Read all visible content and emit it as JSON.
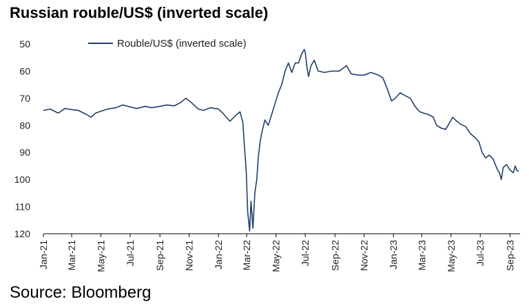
{
  "title": "Russian rouble/US$ (inverted scale)",
  "source": "Source: Bloomberg",
  "colors": {
    "series": "#1f3f66",
    "axis": "#000000"
  },
  "chart_data": {
    "type": "line",
    "title": "Russian rouble/US$ (inverted scale)",
    "xlabel": "",
    "ylabel": "",
    "x_ticks": [
      "Jan-21",
      "Mar-21",
      "May-21",
      "Jul-21",
      "Sep-21",
      "Nov-21",
      "Jan-22",
      "Mar-22",
      "May-22",
      "Jul-22",
      "Sep-22",
      "Nov-22",
      "Jan-23",
      "Mar-23",
      "May-23",
      "Jul-23",
      "Sep-23"
    ],
    "y_ticks": [
      50,
      60,
      70,
      80,
      90,
      100,
      110,
      120
    ],
    "ylim": [
      50,
      120
    ],
    "y_inverted": true,
    "grid": false,
    "legend": "top",
    "series": [
      {
        "name": "Rouble/US$ (inverted scale)",
        "points": [
          [
            "2021-01-01",
            74.5
          ],
          [
            "2021-01-15",
            74.0
          ],
          [
            "2021-02-01",
            75.5
          ],
          [
            "2021-02-15",
            73.8
          ],
          [
            "2021-03-01",
            74.2
          ],
          [
            "2021-03-15",
            74.5
          ],
          [
            "2021-04-01",
            76.0
          ],
          [
            "2021-04-10",
            77.0
          ],
          [
            "2021-04-20",
            75.5
          ],
          [
            "2021-05-01",
            74.8
          ],
          [
            "2021-05-15",
            74.0
          ],
          [
            "2021-06-01",
            73.5
          ],
          [
            "2021-06-15",
            72.5
          ],
          [
            "2021-07-01",
            73.2
          ],
          [
            "2021-07-15",
            73.8
          ],
          [
            "2021-08-01",
            73.0
          ],
          [
            "2021-08-15",
            73.5
          ],
          [
            "2021-09-01",
            73.0
          ],
          [
            "2021-09-15",
            72.5
          ],
          [
            "2021-10-01",
            72.8
          ],
          [
            "2021-10-15",
            71.5
          ],
          [
            "2021-10-25",
            70.0
          ],
          [
            "2021-11-05",
            71.5
          ],
          [
            "2021-11-20",
            74.0
          ],
          [
            "2021-12-01",
            74.5
          ],
          [
            "2021-12-15",
            73.5
          ],
          [
            "2022-01-01",
            74.0
          ],
          [
            "2022-01-10",
            75.5
          ],
          [
            "2022-01-25",
            78.5
          ],
          [
            "2022-02-05",
            76.5
          ],
          [
            "2022-02-15",
            75.0
          ],
          [
            "2022-02-21",
            79.0
          ],
          [
            "2022-02-24",
            87.0
          ],
          [
            "2022-02-28",
            97.0
          ],
          [
            "2022-03-03",
            112.0
          ],
          [
            "2022-03-07",
            119.0
          ],
          [
            "2022-03-10",
            108.0
          ],
          [
            "2022-03-14",
            118.0
          ],
          [
            "2022-03-18",
            105.0
          ],
          [
            "2022-03-22",
            100.0
          ],
          [
            "2022-03-25",
            92.0
          ],
          [
            "2022-03-29",
            86.0
          ],
          [
            "2022-04-01",
            83.0
          ],
          [
            "2022-04-08",
            78.0
          ],
          [
            "2022-04-15",
            80.0
          ],
          [
            "2022-04-22",
            76.0
          ],
          [
            "2022-04-29",
            72.0
          ],
          [
            "2022-05-06",
            68.0
          ],
          [
            "2022-05-13",
            65.0
          ],
          [
            "2022-05-20",
            60.0
          ],
          [
            "2022-05-27",
            57.0
          ],
          [
            "2022-06-03",
            60.5
          ],
          [
            "2022-06-10",
            57.0
          ],
          [
            "2022-06-17",
            57.0
          ],
          [
            "2022-06-24",
            53.5
          ],
          [
            "2022-06-29",
            52.0
          ],
          [
            "2022-07-01",
            53.0
          ],
          [
            "2022-07-05",
            59.0
          ],
          [
            "2022-07-08",
            62.0
          ],
          [
            "2022-07-13",
            58.0
          ],
          [
            "2022-07-20",
            56.0
          ],
          [
            "2022-07-28",
            60.0
          ],
          [
            "2022-08-10",
            60.5
          ],
          [
            "2022-08-25",
            60.0
          ],
          [
            "2022-09-10",
            60.0
          ],
          [
            "2022-09-25",
            58.0
          ],
          [
            "2022-10-05",
            61.0
          ],
          [
            "2022-10-20",
            61.5
          ],
          [
            "2022-11-01",
            61.5
          ],
          [
            "2022-11-15",
            60.5
          ],
          [
            "2022-12-01",
            61.5
          ],
          [
            "2022-12-10",
            62.5
          ],
          [
            "2022-12-20",
            67.0
          ],
          [
            "2022-12-28",
            71.0
          ],
          [
            "2023-01-05",
            70.0
          ],
          [
            "2023-01-15",
            68.0
          ],
          [
            "2023-01-25",
            69.0
          ],
          [
            "2023-02-05",
            70.0
          ],
          [
            "2023-02-15",
            73.0
          ],
          [
            "2023-02-25",
            75.0
          ],
          [
            "2023-03-05",
            75.5
          ],
          [
            "2023-03-15",
            76.0
          ],
          [
            "2023-03-25",
            77.0
          ],
          [
            "2023-04-01",
            80.0
          ],
          [
            "2023-04-10",
            81.0
          ],
          [
            "2023-04-20",
            81.5
          ],
          [
            "2023-04-28",
            79.0
          ],
          [
            "2023-05-05",
            77.0
          ],
          [
            "2023-05-10",
            78.0
          ],
          [
            "2023-05-20",
            79.5
          ],
          [
            "2023-06-01",
            80.5
          ],
          [
            "2023-06-10",
            83.0
          ],
          [
            "2023-06-20",
            84.5
          ],
          [
            "2023-06-28",
            86.0
          ],
          [
            "2023-07-05",
            90.0
          ],
          [
            "2023-07-12",
            92.0
          ],
          [
            "2023-07-20",
            91.0
          ],
          [
            "2023-07-28",
            92.5
          ],
          [
            "2023-08-05",
            96.0
          ],
          [
            "2023-08-10",
            97.5
          ],
          [
            "2023-08-14",
            100.0
          ],
          [
            "2023-08-18",
            95.5
          ],
          [
            "2023-08-25",
            94.5
          ],
          [
            "2023-09-01",
            96.5
          ],
          [
            "2023-09-08",
            97.5
          ],
          [
            "2023-09-12",
            95.0
          ],
          [
            "2023-09-15",
            96.5
          ],
          [
            "2023-09-19",
            97.0
          ]
        ]
      }
    ]
  }
}
